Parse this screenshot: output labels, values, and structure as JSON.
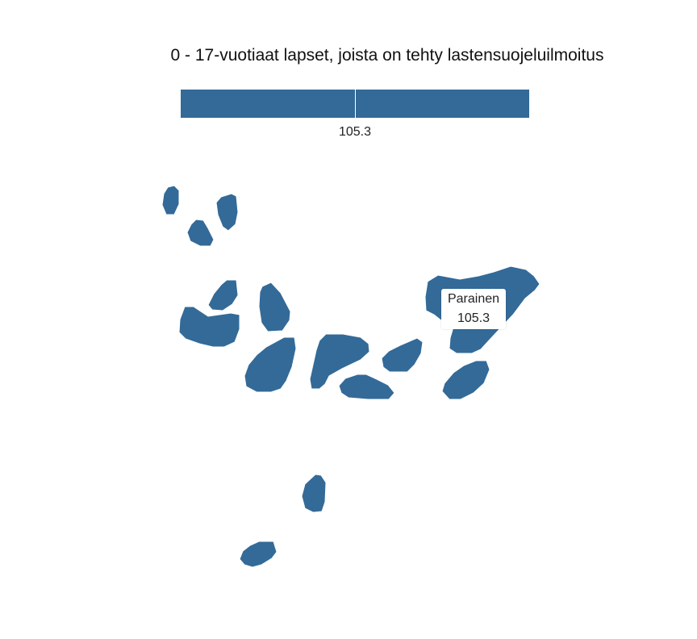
{
  "title": "0 - 17-vuotiaat lapset, joista on tehty lastensuojeluilmoitus",
  "legend": {
    "value_label": "105.3",
    "color": "#336a98"
  },
  "tooltip": {
    "region_name": "Parainen",
    "value": "105.3"
  },
  "map": {
    "fill_color": "#336a98",
    "region_value": 105.3
  }
}
